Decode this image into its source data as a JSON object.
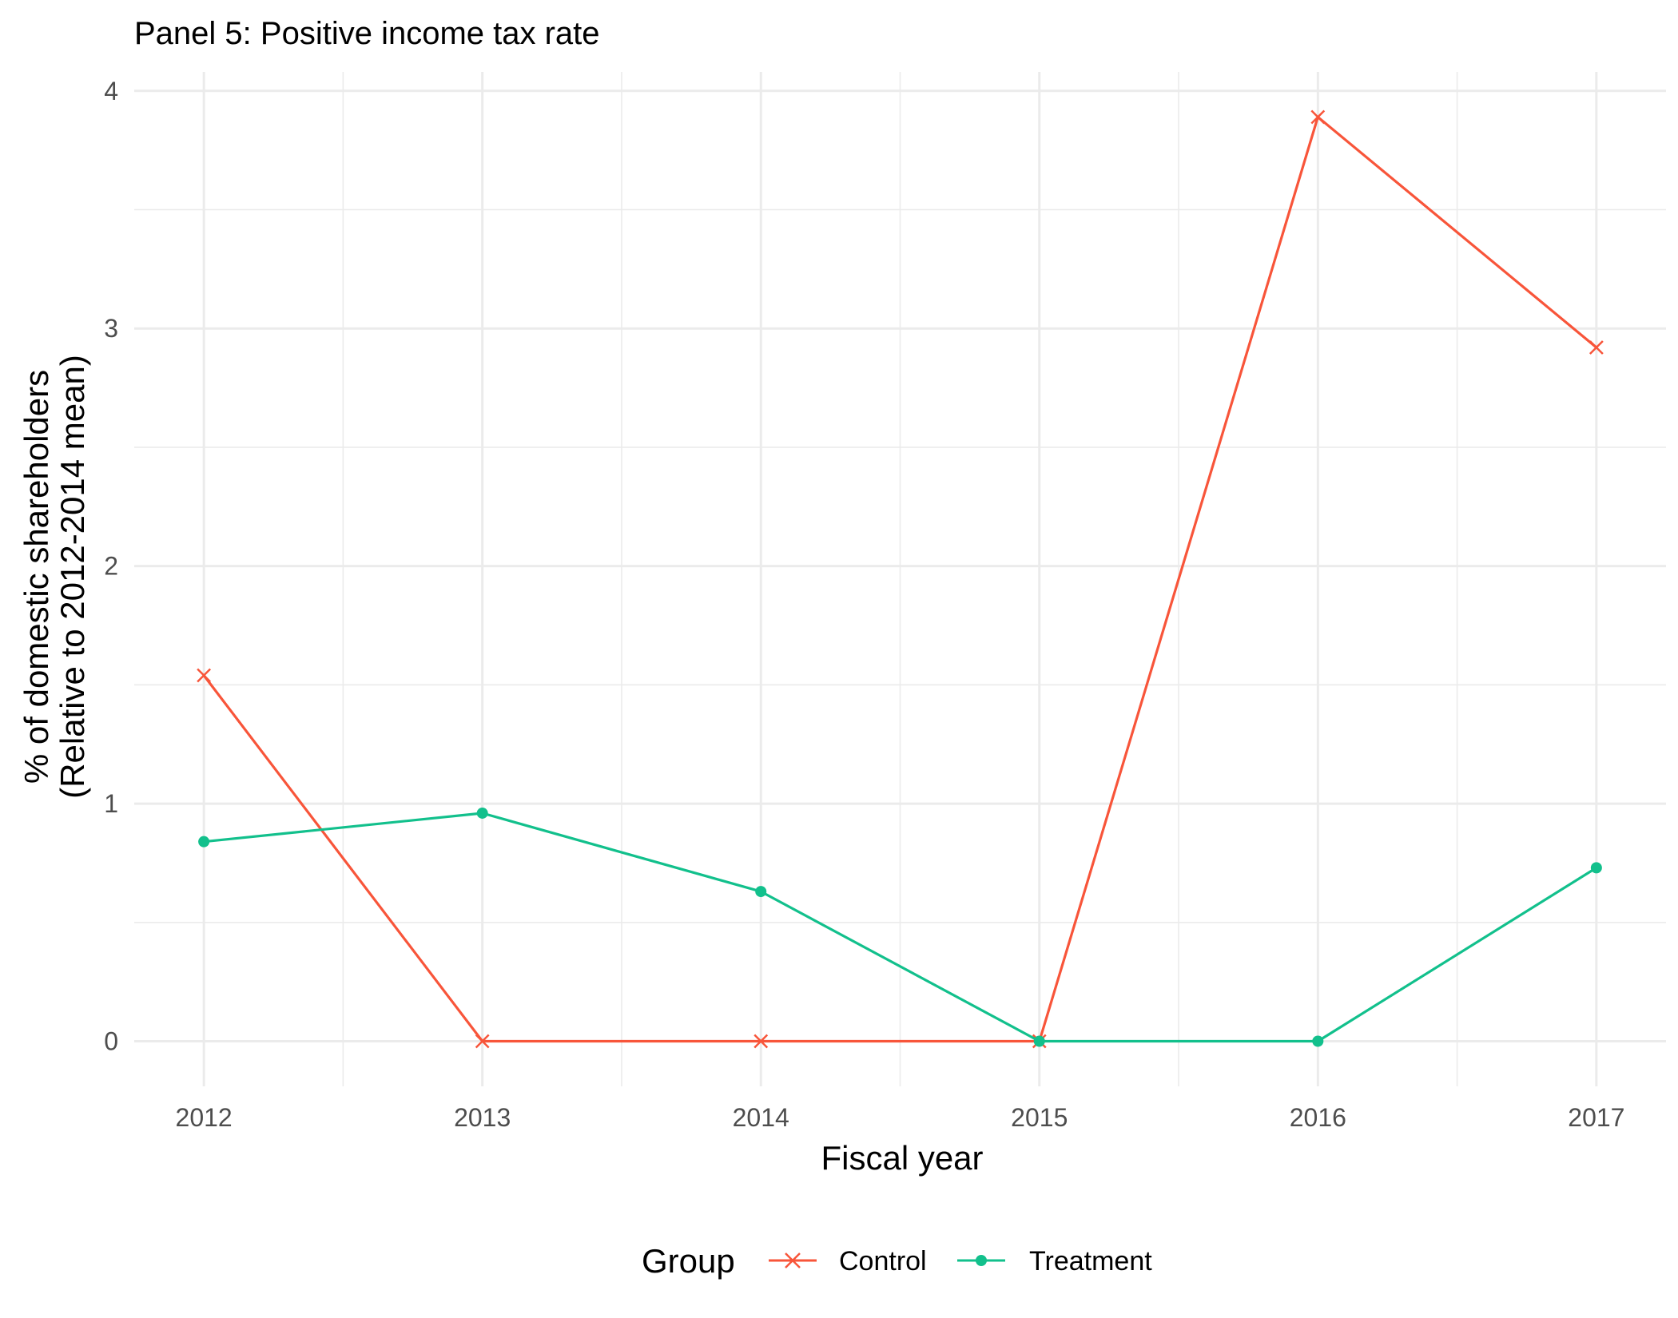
{
  "chart_data": {
    "type": "line",
    "title": "Panel 5: Positive income tax rate",
    "xlabel": "Fiscal year",
    "ylabel": [
      "% of domestic shareholders",
      "(Relative to 2012-2014 mean)"
    ],
    "x": [
      2012,
      2013,
      2014,
      2015,
      2016,
      2017
    ],
    "xlim": [
      2011.75,
      2017.25
    ],
    "ylim": [
      -0.19,
      4.08
    ],
    "yticks": [
      0,
      1,
      2,
      3,
      4
    ],
    "xticks": [
      2012,
      2013,
      2014,
      2015,
      2016,
      2017
    ],
    "grid": true,
    "legend": {
      "title": "Group",
      "position": "bottom"
    },
    "series": [
      {
        "name": "Control",
        "color": "#F8553A",
        "marker": "cross",
        "values": [
          1.54,
          0.0,
          0.0,
          0.0,
          3.89,
          2.92
        ]
      },
      {
        "name": "Treatment",
        "color": "#12C08C",
        "marker": "dot",
        "values": [
          0.84,
          0.96,
          0.63,
          0.0,
          0.0,
          0.73
        ]
      }
    ]
  }
}
